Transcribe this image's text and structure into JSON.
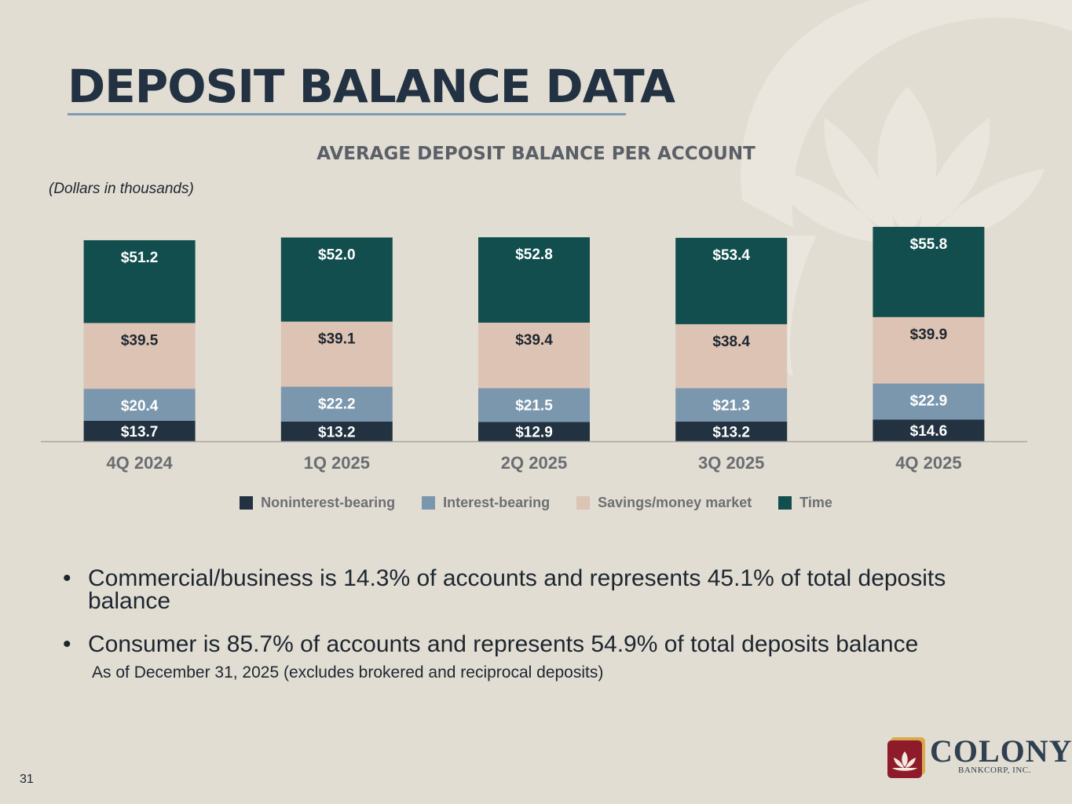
{
  "page": {
    "title": "DEPOSIT BALANCE DATA",
    "units_note": "(Dollars in thousands)",
    "page_number": "31"
  },
  "chart_data": {
    "type": "bar",
    "stacked": true,
    "title": "AVERAGE DEPOSIT BALANCE PER ACCOUNT",
    "categories": [
      "4Q 2024",
      "1Q 2025",
      "2Q 2025",
      "3Q 2025",
      "4Q 2025"
    ],
    "series": [
      {
        "name": "Noninterest-bearing",
        "color": "#223240",
        "values": [
          13.7,
          13.2,
          12.9,
          13.2,
          14.6
        ],
        "labels": [
          "$13.7",
          "$13.2",
          "$12.9",
          "$13.2",
          "$14.6"
        ]
      },
      {
        "name": "Interest-bearing",
        "color": "#7b97ad",
        "values": [
          20.4,
          22.2,
          21.5,
          21.3,
          22.9
        ],
        "labels": [
          "$20.4",
          "$22.2",
          "$21.5",
          "$21.3",
          "$22.9"
        ]
      },
      {
        "name": "Savings/money market",
        "color": "#dcc3b4",
        "values": [
          39.5,
          39.1,
          39.4,
          38.4,
          39.9
        ],
        "labels": [
          "$39.5",
          "$39.1",
          "$39.4",
          "$38.4",
          "$39.9"
        ]
      },
      {
        "name": "Time",
        "color": "#124e4e",
        "values": [
          51.2,
          52.0,
          52.8,
          53.4,
          55.8
        ],
        "labels": [
          "$51.2",
          "$52.0",
          "$52.8",
          "$53.4",
          "$55.8"
        ]
      }
    ],
    "legend_position": "bottom",
    "grid": false
  },
  "bullets": [
    "Commercial/business is 14.3% of accounts and represents 45.1% of total deposits balance",
    "Consumer is 85.7% of accounts and represents 54.9% of total deposits balance"
  ],
  "footnote": "As of December 31, 2025 (excludes brokered and reciprocal deposits)",
  "logo": {
    "name": "COLONY",
    "subtitle": "BANKCORP, INC.",
    "icon": "lotus-flower-icon"
  }
}
